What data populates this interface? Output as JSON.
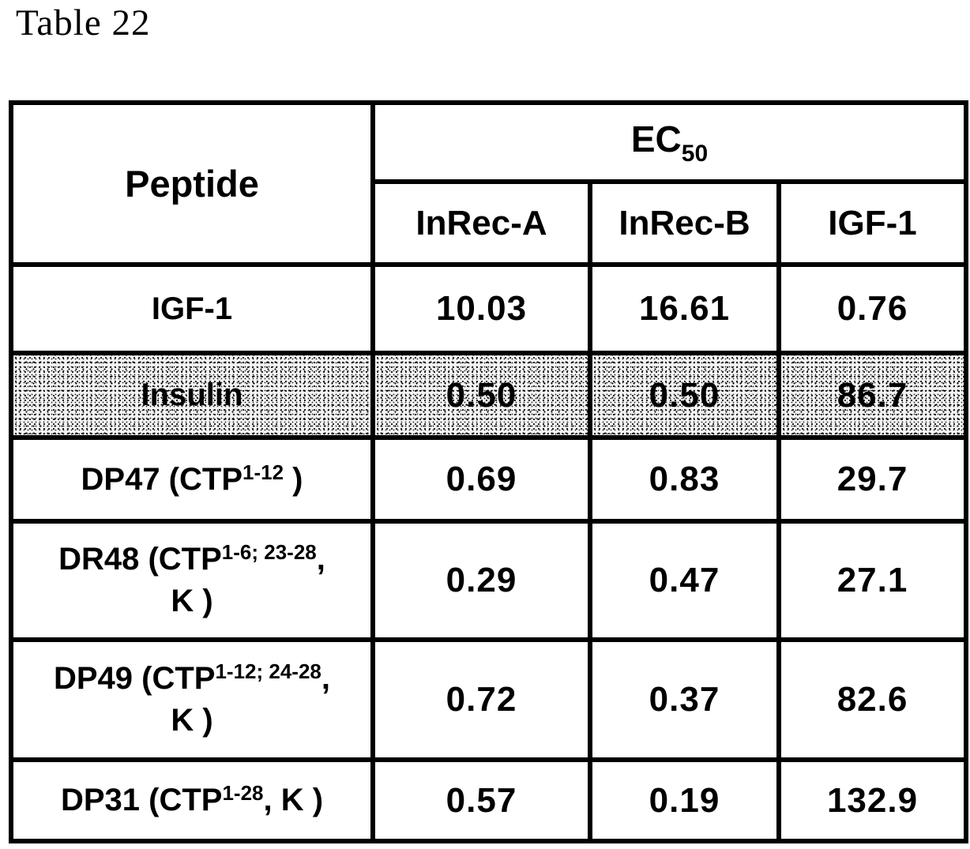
{
  "page_title": "Table 22",
  "table": {
    "header": {
      "peptide": "Peptide",
      "ec50": {
        "base": "EC",
        "subscript": "50"
      },
      "columns": [
        "InRec-A",
        "InRec-B",
        "IGF-1"
      ]
    },
    "rows": [
      {
        "shaded": false,
        "peptide": [
          {
            "text": "IGF-1"
          }
        ],
        "values": [
          "10.03",
          "16.61",
          "0.76"
        ]
      },
      {
        "shaded": true,
        "peptide": [
          {
            "text": "Insulin"
          }
        ],
        "values": [
          "0.50",
          "0.50",
          "86.7"
        ]
      },
      {
        "shaded": false,
        "peptide": [
          {
            "text": "DP47 (CTP"
          },
          {
            "text": "1-12",
            "sup": true
          },
          {
            "text": " )"
          }
        ],
        "values": [
          "0.69",
          "0.83",
          "29.7"
        ]
      },
      {
        "shaded": false,
        "peptide": [
          {
            "text": "DR48 (CTP"
          },
          {
            "text": "1-6; 23-28",
            "sup": true
          },
          {
            "text": ","
          },
          {
            "br": true
          },
          {
            "text": "K )"
          }
        ],
        "values": [
          "0.29",
          "0.47",
          "27.1"
        ]
      },
      {
        "shaded": false,
        "peptide": [
          {
            "text": "DP49 (CTP"
          },
          {
            "text": "1-12; 24-28",
            "sup": true
          },
          {
            "text": ","
          },
          {
            "br": true
          },
          {
            "text": "K )"
          }
        ],
        "values": [
          "0.72",
          "0.37",
          "82.6"
        ]
      },
      {
        "shaded": false,
        "peptide": [
          {
            "text": "DP31 (CTP"
          },
          {
            "text": "1-28",
            "sup": true
          },
          {
            "text": ", K )"
          }
        ],
        "values": [
          "0.57",
          "0.19",
          "132.9"
        ]
      }
    ]
  }
}
